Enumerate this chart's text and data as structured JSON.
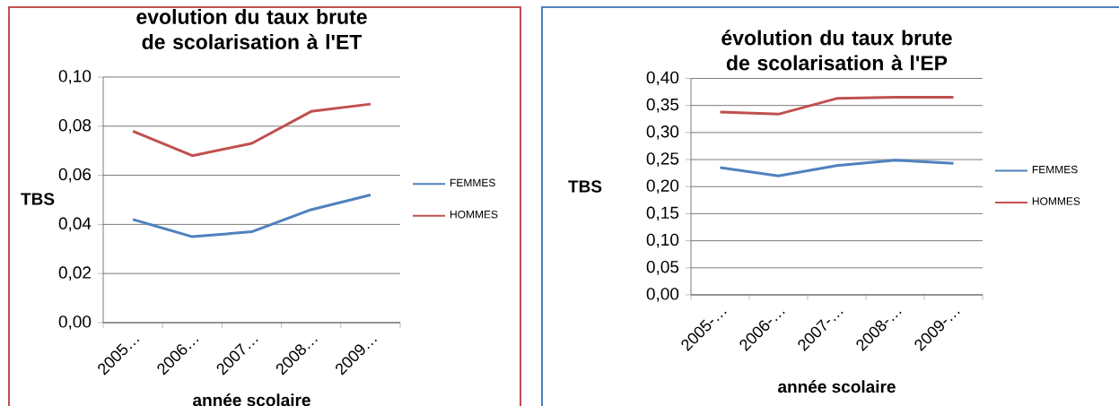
{
  "chart_data": [
    {
      "type": "line",
      "title": "evolution du taux brute de scolarisation à l'ET",
      "xlabel": "année scolaire",
      "ylabel": "TBS",
      "categories": [
        "2005…",
        "2006…",
        "2007…",
        "2008…",
        "2009…"
      ],
      "series": [
        {
          "name": "FEMMES",
          "color": "#4f81bd",
          "values": [
            0.042,
            0.035,
            0.037,
            0.046,
            0.052
          ]
        },
        {
          "name": "HOMMES",
          "color": "#c0504d",
          "values": [
            0.078,
            0.068,
            0.073,
            0.086,
            0.089
          ]
        }
      ],
      "ylim": [
        0,
        0.1
      ],
      "yticks": [
        {
          "value": 0,
          "label": "0,00"
        },
        {
          "value": 0.02,
          "label": "0,02"
        },
        {
          "value": 0.04,
          "label": "0,04"
        },
        {
          "value": 0.06,
          "label": "0,06"
        },
        {
          "value": 0.08,
          "label": "0,08"
        },
        {
          "value": 0.1,
          "label": "0,10"
        }
      ],
      "grid": "y",
      "legend": "right",
      "marker": "none",
      "line_style": "solid"
    },
    {
      "type": "line",
      "title": "évolution du taux brute de scolarisation à l'EP",
      "xlabel": "année scolaire",
      "ylabel": "TBS",
      "categories": [
        "2005-…",
        "2006-…",
        "2007-…",
        "2008-…",
        "2009-…"
      ],
      "series": [
        {
          "name": "FEMMES",
          "color": "#4f81bd",
          "values": [
            0.235,
            0.22,
            0.239,
            0.249,
            0.243
          ]
        },
        {
          "name": "HOMMES",
          "color": "#c0504d",
          "values": [
            0.338,
            0.334,
            0.363,
            0.365,
            0.365
          ]
        }
      ],
      "ylim": [
        0,
        0.4
      ],
      "yticks": [
        {
          "value": 0,
          "label": "0,00"
        },
        {
          "value": 0.05,
          "label": "0,05"
        },
        {
          "value": 0.1,
          "label": "0,10"
        },
        {
          "value": 0.15,
          "label": "0,15"
        },
        {
          "value": 0.2,
          "label": "0,20"
        },
        {
          "value": 0.25,
          "label": "0,25"
        },
        {
          "value": 0.3,
          "label": "0,30"
        },
        {
          "value": 0.35,
          "label": "0,35"
        },
        {
          "value": 0.4,
          "label": "0,40"
        }
      ],
      "grid": "y",
      "legend": "right",
      "marker": "none",
      "line_style": "solid"
    }
  ]
}
